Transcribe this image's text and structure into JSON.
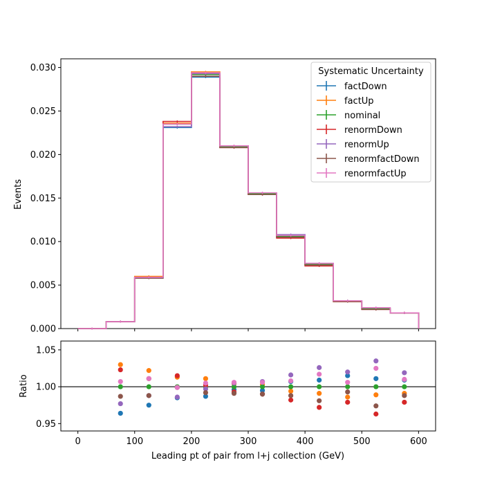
{
  "chart_data": [
    {
      "type": "line",
      "drawstyle": "steps-post",
      "ylabel": "Events",
      "xlim": [
        -30,
        630
      ],
      "ylim": [
        0,
        0.031
      ],
      "yticks": [
        0.0,
        0.005,
        0.01,
        0.015,
        0.02,
        0.025,
        0.03
      ],
      "ytick_labels": [
        "0.000",
        "0.005",
        "0.010",
        "0.015",
        "0.020",
        "0.025",
        "0.030"
      ],
      "bin_edges": [
        0,
        50,
        100,
        150,
        200,
        250,
        300,
        350,
        400,
        450,
        500,
        550,
        600
      ],
      "legend": {
        "title": "Systematic Uncertainty",
        "placement": "top-right"
      },
      "series": [
        {
          "name": "factDown",
          "color": "#1f77b4",
          "values": [
            0.0,
            0.0008,
            0.0058,
            0.0231,
            0.0289,
            0.0209,
            0.0155,
            0.0107,
            0.0074,
            0.0032,
            0.0023,
            0.0018
          ]
        },
        {
          "name": "factUp",
          "color": "#ff7f0e",
          "values": [
            0.0,
            0.0008,
            0.006,
            0.0236,
            0.0295,
            0.021,
            0.0155,
            0.0105,
            0.0073,
            0.0031,
            0.0023,
            0.0018
          ]
        },
        {
          "name": "nominal",
          "color": "#2ca02c",
          "values": [
            0.0,
            0.0008,
            0.0059,
            0.0235,
            0.0292,
            0.0209,
            0.0155,
            0.0106,
            0.0074,
            0.0032,
            0.0023,
            0.0018
          ]
        },
        {
          "name": "renormDown",
          "color": "#d62728",
          "values": [
            0.0,
            0.0008,
            0.0059,
            0.0238,
            0.0293,
            0.0208,
            0.0154,
            0.0104,
            0.0072,
            0.0031,
            0.0022,
            0.0018
          ]
        },
        {
          "name": "renormUp",
          "color": "#9467bd",
          "values": [
            0.0,
            0.0008,
            0.0058,
            0.0232,
            0.0293,
            0.021,
            0.0156,
            0.0108,
            0.0075,
            0.0032,
            0.0024,
            0.0018
          ]
        },
        {
          "name": "renormfactDown",
          "color": "#8c564b",
          "values": [
            0.0,
            0.0008,
            0.0058,
            0.0235,
            0.029,
            0.0208,
            0.0154,
            0.0105,
            0.0073,
            0.0031,
            0.0022,
            0.0018
          ]
        },
        {
          "name": "renormfactUp",
          "color": "#e377c2",
          "values": [
            0.0,
            0.0008,
            0.0059,
            0.0235,
            0.0294,
            0.021,
            0.0156,
            0.0107,
            0.0075,
            0.0032,
            0.0024,
            0.0018
          ]
        }
      ]
    },
    {
      "type": "scatter",
      "xlabel": "Leading pt of pair from l+j collection (GeV)",
      "ylabel": "Ratio",
      "xlim": [
        -30,
        630
      ],
      "ylim": [
        0.94,
        1.062
      ],
      "xticks": [
        0,
        100,
        200,
        300,
        400,
        500,
        600
      ],
      "xtick_labels": [
        "0",
        "100",
        "200",
        "300",
        "400",
        "500",
        "600"
      ],
      "yticks": [
        0.95,
        1.0,
        1.05
      ],
      "ytick_labels": [
        "0.95",
        "1.00",
        "1.05"
      ],
      "reference_line": 1.0,
      "x": [
        75,
        125,
        175,
        225,
        275,
        325,
        375,
        425,
        475,
        525,
        575
      ],
      "series": [
        {
          "name": "factDown",
          "color": "#1f77b4",
          "values": [
            0.964,
            0.975,
            0.985,
            0.987,
            0.996,
            0.995,
            1.007,
            1.009,
            1.015,
            1.011,
            1.009
          ]
        },
        {
          "name": "factUp",
          "color": "#ff7f0e",
          "values": [
            1.03,
            1.022,
            1.013,
            1.011,
            1.004,
            1.003,
            0.994,
            0.991,
            0.986,
            0.989,
            0.991
          ]
        },
        {
          "name": "nominal",
          "color": "#2ca02c",
          "values": [
            1.0,
            1.0,
            1.0,
            1.0,
            1.0,
            1.0,
            1.0,
            1.0,
            1.0,
            1.0,
            1.0
          ]
        },
        {
          "name": "renormDown",
          "color": "#d62728",
          "values": [
            1.023,
            1.011,
            1.015,
            1.002,
            0.993,
            0.99,
            0.982,
            0.972,
            0.979,
            0.963,
            0.979
          ]
        },
        {
          "name": "renormUp",
          "color": "#9467bd",
          "values": [
            0.977,
            0.988,
            0.986,
            0.997,
            1.005,
            1.007,
            1.016,
            1.026,
            1.02,
            1.035,
            1.019
          ]
        },
        {
          "name": "renormfactDown",
          "color": "#8c564b",
          "values": [
            0.987,
            0.988,
            0.999,
            0.992,
            0.991,
            0.99,
            0.988,
            0.981,
            0.993,
            0.974,
            0.988
          ]
        },
        {
          "name": "renormfactUp",
          "color": "#e377c2",
          "values": [
            1.007,
            1.011,
            0.999,
            1.005,
            1.006,
            1.006,
            1.008,
            1.017,
            1.006,
            1.025,
            1.01
          ]
        }
      ]
    }
  ]
}
